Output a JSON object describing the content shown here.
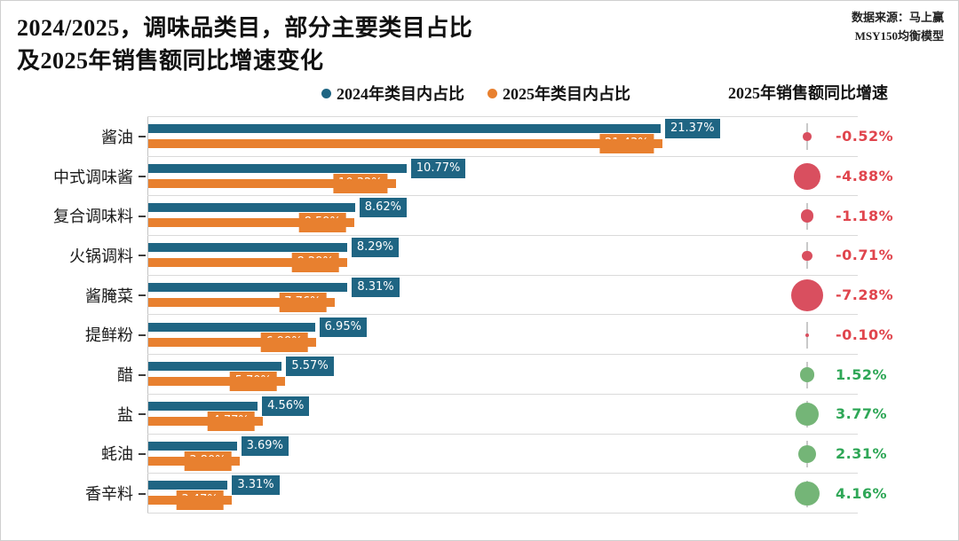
{
  "title": {
    "line1": "2024/2025，调味品类目，部分主要类目占比",
    "line2": "及2025年销售额同比增速变化"
  },
  "source": {
    "line1": "数据来源：马上赢",
    "line2": "MSY150均衡模型"
  },
  "legend": {
    "items": [
      {
        "label": "2024年类目内占比",
        "color": "#1f6583"
      },
      {
        "label": "2025年类目内占比",
        "color": "#e8802f"
      }
    ]
  },
  "growth_header": "2025年销售额同比增速",
  "colors": {
    "bar_2024": "#1f6583",
    "bar_2025": "#e8802f",
    "bubble_negative": "#d94f5f",
    "bubble_positive": "#74b577",
    "text_negative": "#e0454d",
    "text_positive": "#2fa757",
    "gridline": "#dadada",
    "axis": "#c4c4c4"
  },
  "chart_data": {
    "type": "bar",
    "orientation": "horizontal",
    "title": "2024/2025，调味品类目，部分主要类目占比 及2025年销售额同比增速变化",
    "categories": [
      "酱油",
      "中式调味酱",
      "复合调味料",
      "火锅调料",
      "酱腌菜",
      "提鲜粉",
      "醋",
      "盐",
      "蚝油",
      "香辛料"
    ],
    "series": [
      {
        "name": "2024年类目内占比",
        "color": "#1f6583",
        "values": [
          21.37,
          10.77,
          8.62,
          8.29,
          8.31,
          6.95,
          5.57,
          4.56,
          3.69,
          3.31
        ],
        "labels": [
          "21.37%",
          "10.77%",
          "8.62%",
          "8.29%",
          "8.31%",
          "6.95%",
          "5.57%",
          "4.56%",
          "3.69%",
          "3.31%"
        ]
      },
      {
        "name": "2025年类目内占比",
        "color": "#e8802f",
        "values": [
          21.43,
          10.32,
          8.59,
          8.29,
          7.76,
          6.99,
          5.7,
          4.77,
          3.8,
          3.47
        ],
        "labels": [
          "21.43%",
          "10.32%",
          "8.59%",
          "8.29%",
          "7.76%",
          "6.99%",
          "5.70%",
          "4.77%",
          "3.80%",
          "3.47%"
        ]
      }
    ],
    "growth": {
      "name": "2025年销售额同比增速",
      "values": [
        -0.52,
        -4.88,
        -1.18,
        -0.71,
        -7.28,
        -0.1,
        1.52,
        3.77,
        2.31,
        4.16
      ],
      "labels": [
        "-0.52%",
        "-4.88%",
        "-1.18%",
        "-0.71%",
        "-7.28%",
        "-0.10%",
        "1.52%",
        "3.77%",
        "2.31%",
        "4.16%"
      ]
    },
    "xlim": [
      0,
      29.6
    ],
    "grid": "horizontal-separators",
    "legend_position": "top-center"
  }
}
